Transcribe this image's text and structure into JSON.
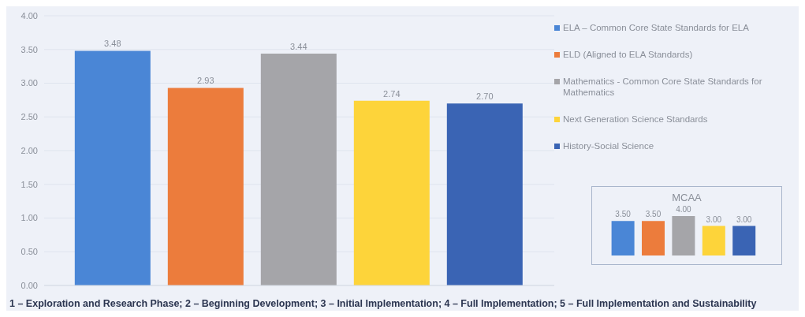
{
  "chart_data": [
    {
      "type": "bar",
      "categories": [
        null
      ],
      "series": [
        {
          "name": "ELA – Common Core State Standards for ELA",
          "color": "#4a86d6",
          "values": [
            3.48
          ],
          "value_labels": [
            "3.48"
          ]
        },
        {
          "name": "ELD (Aligned to ELA Standards)",
          "color": "#ec7c3c",
          "values": [
            2.93
          ],
          "value_labels": [
            "2.93"
          ]
        },
        {
          "name": "Mathematics - Common Core State Standards for Mathematics",
          "color": "#a5a5a9",
          "values": [
            3.44
          ],
          "value_labels": [
            "3.44"
          ]
        },
        {
          "name": "Next Generation Science Standards",
          "color": "#fdd43a",
          "values": [
            2.74
          ],
          "value_labels": [
            "2.74"
          ]
        },
        {
          "name": "History-Social Science",
          "color": "#3a64b4",
          "values": [
            2.7
          ],
          "value_labels": [
            "2.70"
          ]
        }
      ],
      "ylim": [
        0,
        4
      ],
      "yticks": [
        {
          "value": 0,
          "label": "0.00"
        },
        {
          "value": 0.5,
          "label": "0.50"
        },
        {
          "value": 1,
          "label": "1.00"
        },
        {
          "value": 1.5,
          "label": "1.50"
        },
        {
          "value": 2,
          "label": "2.00"
        },
        {
          "value": 2.5,
          "label": "2.50"
        },
        {
          "value": 3,
          "label": "3.00"
        },
        {
          "value": 3.5,
          "label": "3.50"
        },
        {
          "value": 4,
          "label": "4.00"
        }
      ],
      "grid": "y",
      "legend": "right",
      "annotations": [
        "1 – Exploration and Research Phase; 2 – Beginning Development; 3 – Initial Implementation; 4 – Full Implementation; 5 – Full Implementation and Sustainability"
      ]
    },
    {
      "type": "bar",
      "title": "MCAA",
      "categories": [
        null,
        null,
        null,
        null,
        null
      ],
      "values": [
        3.5,
        3.5,
        4,
        3,
        3
      ],
      "colors": [
        "#4a86d6",
        "#ec7c3c",
        "#a5a5a9",
        "#fdd43a",
        "#3a64b4"
      ],
      "value_labels": [
        "3.50",
        "3.50",
        "4.00",
        "3.00",
        "3.00"
      ]
    }
  ]
}
